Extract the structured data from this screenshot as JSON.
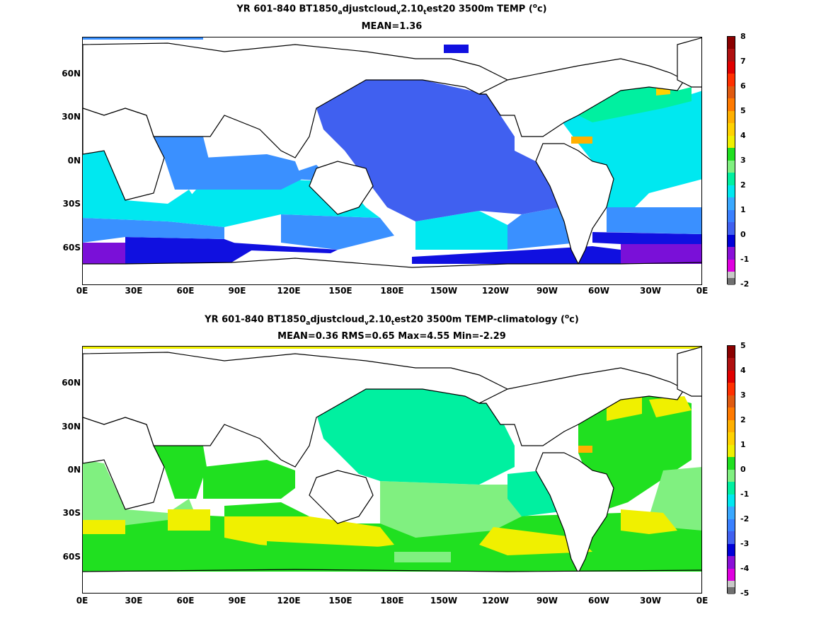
{
  "panels": [
    {
      "title_line1_pre": "YR 601-840 BT1850",
      "sub1": "a",
      "title_line1_mid1": "djustcloud",
      "sub2": "v",
      "title_line1_mid2": "2.10",
      "sub3": "t",
      "title_line1_post": "est20 3500m TEMP (",
      "sup": "o",
      "title_unit": "c)",
      "title_line2": "MEAN=1.36",
      "colorbar_labels": [
        "8",
        "7",
        "6",
        "5",
        "4",
        "3",
        "2",
        "1",
        "0",
        "-1",
        "-2"
      ],
      "colorbar_colors": [
        "#8b0000",
        "#cc1010",
        "#ff2a00",
        "#ff7a00",
        "#ffb400",
        "#f2e800",
        "#12d812",
        "#7cf27c",
        "#00f7c0",
        "#00e6f0",
        "#7fc6ff",
        "#3c8cff",
        "#3f60f0",
        "#1010e0",
        "#7a10d8",
        "#ff00ff",
        "#c8c8c8",
        "#707070"
      ],
      "legend_segments": [
        "#8b0000",
        "#cc3300",
        "#e06020",
        "#ffb000",
        "#ffd200",
        "#20e020",
        "#00f0a0",
        "#00e8f0",
        "#3a90ff",
        "#4060f0",
        "#0000d8",
        "#8a10d8",
        "#e000e0",
        "#c8c8c8",
        "#707070"
      ]
    },
    {
      "title_line1_pre": "YR 601-840 BT1850",
      "sub1": "a",
      "title_line1_mid1": "djustcloud",
      "sub2": "v",
      "title_line1_mid2": "2.10",
      "sub3": "t",
      "title_line1_post": "est20 3500m TEMP-climatology (",
      "sup": "o",
      "title_unit": "c)",
      "title_line2": "MEAN=0.36   RMS=0.65   Max=4.55   Min=-2.29",
      "colorbar_labels": [
        "5",
        "4",
        "3",
        "2",
        "1",
        "0",
        "-1",
        "-2",
        "-3",
        "-4",
        "-5"
      ]
    }
  ],
  "lat_labels": [
    "60N",
    "30N",
    "0N",
    "30S",
    "60S"
  ],
  "lon_labels": [
    "0E",
    "30E",
    "60E",
    "90E",
    "120E",
    "150E",
    "180E",
    "150W",
    "120W",
    "90W",
    "60W",
    "30W",
    "0E"
  ]
}
